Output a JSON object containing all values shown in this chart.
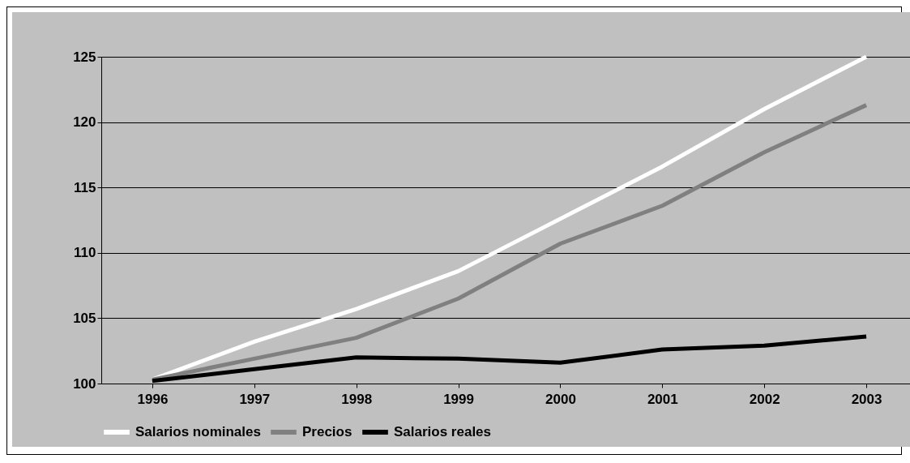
{
  "chart_data": {
    "type": "line",
    "categories": [
      "1996",
      "1997",
      "1998",
      "1999",
      "2000",
      "2001",
      "2002",
      "2003"
    ],
    "series": [
      {
        "name": "Salarios nominales",
        "color": "#ffffff",
        "values": [
          100.3,
          103.2,
          105.7,
          108.6,
          112.6,
          116.6,
          121,
          125
        ]
      },
      {
        "name": "Precios",
        "color": "#808080",
        "values": [
          100.3,
          101.9,
          103.5,
          106.5,
          110.7,
          113.6,
          117.7,
          121.3
        ]
      },
      {
        "name": "Salarios reales",
        "color": "#000000",
        "values": [
          100.2,
          101.1,
          102,
          101.9,
          101.6,
          102.6,
          102.9,
          103.6
        ]
      }
    ],
    "ylim": [
      100,
      125
    ],
    "yticks": [
      100,
      105,
      110,
      115,
      120,
      125
    ],
    "grid": "y",
    "legend": "bottom",
    "line_style": "solid"
  }
}
